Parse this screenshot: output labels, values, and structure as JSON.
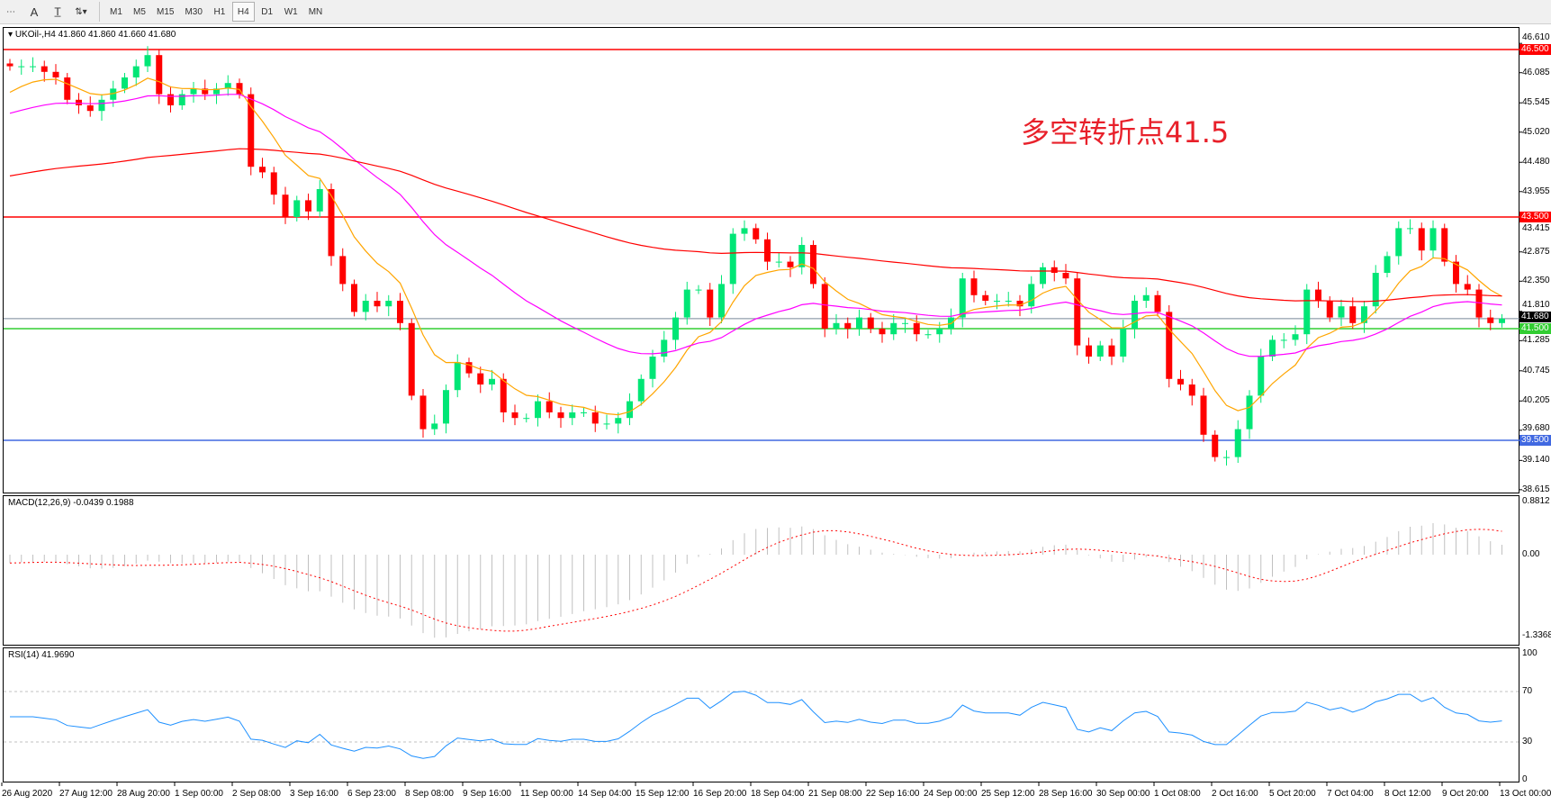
{
  "toolbar": {
    "tools": [
      "period-separator",
      "text-label",
      "text",
      "arrows"
    ],
    "timeframes": [
      "M1",
      "M5",
      "M15",
      "M30",
      "H1",
      "H4",
      "D1",
      "W1",
      "MN"
    ],
    "active_timeframe": "H4"
  },
  "main": {
    "label": "UKOil-,H4  41.860 41.860 41.660 41.680",
    "annotation": "多空转折点41.5",
    "price_ticks": [
      "46.610",
      "46.085",
      "45.545",
      "45.020",
      "44.480",
      "43.955",
      "43.415",
      "42.875",
      "42.350",
      "41.810",
      "41.285",
      "40.745",
      "40.205",
      "39.680",
      "39.140",
      "38.615"
    ],
    "levels": [
      {
        "price": 46.5,
        "label": "46.500",
        "color": "#ff0000"
      },
      {
        "price": 43.5,
        "label": "43.500",
        "color": "#ff0000"
      },
      {
        "price": 41.5,
        "label": "41.500",
        "color": "#32cd32"
      },
      {
        "price": 39.5,
        "label": "39.500",
        "color": "#4169e1"
      }
    ],
    "current": {
      "price": 41.68,
      "label": "41.680"
    },
    "colors": {
      "bull": "#00e676",
      "bear": "#ff0000",
      "ma_fast": "#ffa500",
      "ma_mid": "#ff00ff",
      "ma_slow": "#ff0000"
    },
    "closes": [
      46.2,
      46.2,
      46.2,
      46.1,
      46.0,
      45.6,
      45.5,
      45.4,
      45.6,
      45.8,
      46.0,
      46.2,
      46.4,
      45.7,
      45.5,
      45.7,
      45.8,
      45.7,
      45.8,
      45.9,
      45.7,
      44.4,
      44.3,
      43.9,
      43.5,
      43.8,
      43.6,
      44.0,
      42.8,
      42.3,
      41.8,
      42.0,
      41.9,
      42.0,
      41.6,
      40.3,
      39.7,
      39.8,
      40.4,
      40.9,
      40.7,
      40.5,
      40.6,
      40.0,
      39.9,
      39.9,
      40.2,
      40.0,
      39.9,
      40.0,
      40.0,
      39.8,
      39.8,
      39.9,
      40.2,
      40.6,
      41.0,
      41.3,
      41.7,
      42.2,
      42.2,
      41.7,
      42.3,
      43.2,
      43.3,
      43.1,
      42.7,
      42.7,
      42.6,
      43.0,
      42.3,
      41.5,
      41.6,
      41.5,
      41.7,
      41.5,
      41.4,
      41.6,
      41.6,
      41.4,
      41.4,
      41.5,
      41.7,
      42.4,
      42.1,
      42.0,
      42.0,
      42.0,
      41.9,
      42.3,
      42.6,
      42.5,
      42.4,
      41.2,
      41.0,
      41.2,
      41.0,
      41.5,
      42.0,
      42.1,
      41.8,
      40.6,
      40.5,
      40.3,
      39.6,
      39.2,
      39.2,
      39.7,
      40.3,
      41.0,
      41.3,
      41.3,
      41.4,
      42.2,
      42.0,
      41.7,
      41.9,
      41.6,
      41.9,
      42.5,
      42.8,
      43.3,
      43.3,
      42.9,
      43.3,
      42.7,
      42.3,
      42.2,
      41.7,
      41.6,
      41.68
    ]
  },
  "macd": {
    "label": "MACD(12,26,9) -0.0439 0.1988",
    "ticks": [
      "0.8812",
      "0.00",
      "-1.3368"
    ],
    "range": [
      -1.3368,
      0.8812
    ]
  },
  "rsi": {
    "label": "RSI(14) 41.9690",
    "ticks": [
      "100",
      "70",
      "30",
      "0"
    ],
    "levels": [
      70,
      30
    ],
    "color": "#1e90ff"
  },
  "time_labels": [
    "26 Aug 2020",
    "27 Aug 12:00",
    "28 Aug 20:00",
    "1 Sep 00:00",
    "2 Sep 08:00",
    "3 Sep 16:00",
    "6 Sep 23:00",
    "8 Sep 08:00",
    "9 Sep 16:00",
    "11 Sep 00:00",
    "14 Sep 04:00",
    "15 Sep 12:00",
    "16 Sep 20:00",
    "18 Sep 04:00",
    "21 Sep 08:00",
    "22 Sep 16:00",
    "24 Sep 00:00",
    "25 Sep 12:00",
    "28 Sep 16:00",
    "30 Sep 00:00",
    "1 Oct 08:00",
    "2 Oct 16:00",
    "5 Oct 20:00",
    "7 Oct 04:00",
    "8 Oct 12:00",
    "9 Oct 20:00",
    "13 Oct 00:00"
  ]
}
